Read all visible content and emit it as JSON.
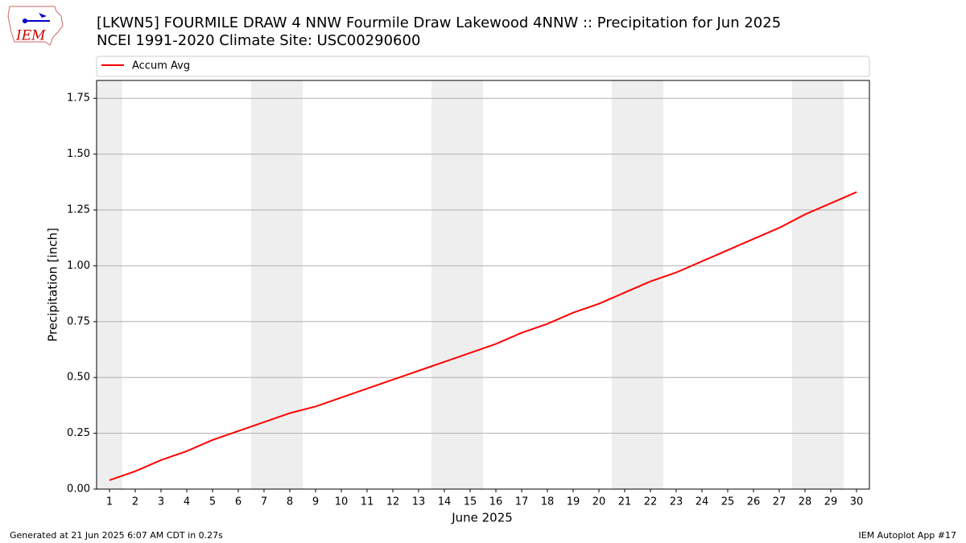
{
  "logo_text": "IEM",
  "footer_left": "Generated at 21 Jun 2025 6:07 AM CDT in 0.27s",
  "footer_right": "IEM Autoplot App #17",
  "chart_data": {
    "type": "line",
    "title": "[LKWN5] FOURMILE DRAW 4 NNW Fourmile Draw Lakewood 4NNW :: Precipitation for Jun 2025",
    "subtitle": "NCEI 1991-2020 Climate Site: USC00290600",
    "xlabel": "June 2025",
    "ylabel": "Precipitation [inch]",
    "x": [
      1,
      2,
      3,
      4,
      5,
      6,
      7,
      8,
      9,
      10,
      11,
      12,
      13,
      14,
      15,
      16,
      17,
      18,
      19,
      20,
      21,
      22,
      23,
      24,
      25,
      26,
      27,
      28,
      29,
      30
    ],
    "series": [
      {
        "name": "Accum Avg",
        "color": "#ff0000",
        "values": [
          0.04,
          0.08,
          0.13,
          0.17,
          0.22,
          0.26,
          0.3,
          0.34,
          0.37,
          0.41,
          0.45,
          0.49,
          0.53,
          0.57,
          0.61,
          0.65,
          0.7,
          0.74,
          0.79,
          0.83,
          0.88,
          0.93,
          0.97,
          1.02,
          1.07,
          1.12,
          1.17,
          1.23,
          1.28,
          1.33
        ]
      }
    ],
    "highlight_spans": [
      [
        0.5,
        1.5
      ],
      [
        6.5,
        8.5
      ],
      [
        13.5,
        15.5
      ],
      [
        20.5,
        22.5
      ],
      [
        27.5,
        29.5
      ]
    ],
    "highlight_color": "#eeeeee",
    "xlim": [
      0.5,
      30.5
    ],
    "xticks": [
      1,
      2,
      3,
      4,
      5,
      6,
      7,
      8,
      9,
      10,
      11,
      12,
      13,
      14,
      15,
      16,
      17,
      18,
      19,
      20,
      21,
      22,
      23,
      24,
      25,
      26,
      27,
      28,
      29,
      30
    ],
    "ylim": [
      0,
      1.83
    ],
    "yticks": [
      {
        "value": 0,
        "label": "0.00"
      },
      {
        "value": 0.25,
        "label": "0.25"
      },
      {
        "value": 0.5,
        "label": "0.50"
      },
      {
        "value": 0.75,
        "label": "0.75"
      },
      {
        "value": 1.0,
        "label": "1.00"
      },
      {
        "value": 1.25,
        "label": "1.25"
      },
      {
        "value": 1.5,
        "label": "1.50"
      },
      {
        "value": 1.75,
        "label": "1.75"
      }
    ],
    "grid": true,
    "legend": "top"
  }
}
